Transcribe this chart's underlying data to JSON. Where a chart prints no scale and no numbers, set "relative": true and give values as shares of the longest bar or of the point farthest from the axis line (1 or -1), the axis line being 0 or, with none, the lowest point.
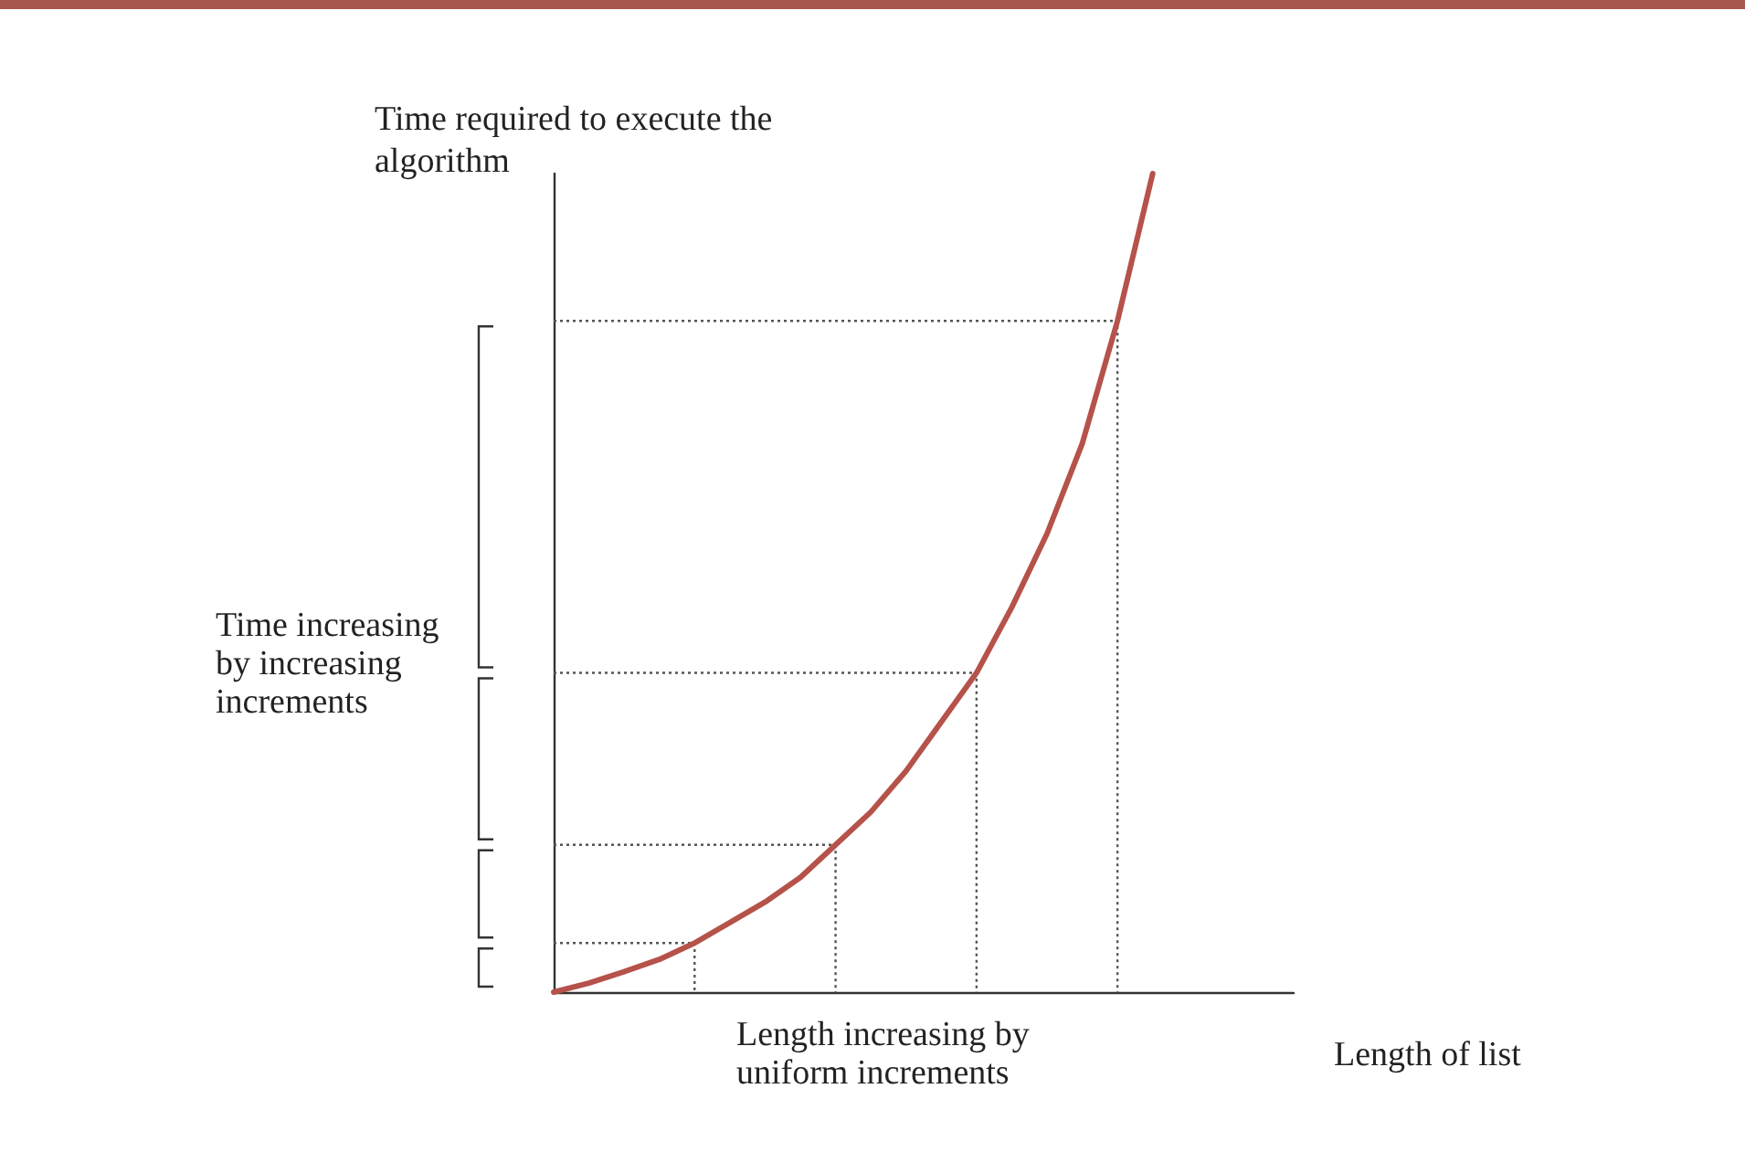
{
  "chart_data": {
    "type": "line",
    "relative": true,
    "ylabel": "Time required to execute the algorithm",
    "xlabel": "Length of list",
    "categories": [
      null,
      null,
      null,
      null,
      null,
      null,
      null,
      null,
      null,
      null,
      null,
      null,
      null,
      null,
      null,
      null,
      null,
      null,
      null,
      null,
      null,
      null
    ],
    "series": [
      {
        "color": "#b5524a",
        "values": [
          0,
          0.011,
          0.025,
          0.04,
          0.06,
          0.085,
          0.11,
          0.14,
          0.18,
          0.22,
          0.27,
          0.33,
          0.39,
          0.47,
          0.56,
          0.67,
          0.82,
          1,
          null,
          null,
          null,
          null
        ]
      }
    ],
    "ref_lines": [
      {
        "axis": "y",
        "value": 0.06,
        "line_style": "dotted"
      },
      {
        "axis": "y",
        "value": 0.18,
        "line_style": "dotted"
      },
      {
        "axis": "y",
        "value": 0.39,
        "line_style": "dotted"
      },
      {
        "axis": "y",
        "value": 0.82,
        "line_style": "dotted"
      }
    ],
    "annotations": [
      "Time increasing by increasing increments",
      "Length increasing by uniform increments"
    ],
    "grid": false,
    "line_style": "solid"
  }
}
